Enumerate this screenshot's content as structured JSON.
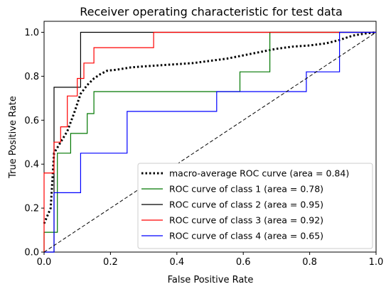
{
  "chart_data": {
    "type": "line",
    "title": "Receiver operating characteristic for test data",
    "xlabel": "False Positive Rate",
    "ylabel": "True Positive Rate",
    "xlim": [
      0.0,
      1.0
    ],
    "ylim": [
      0.0,
      1.05
    ],
    "xticks": [
      "0.0",
      "0.2",
      "0.4",
      "0.6",
      "0.8",
      "1.0"
    ],
    "yticks": [
      "0.0",
      "0.2",
      "0.4",
      "0.6",
      "0.8",
      "1.0"
    ],
    "grid": false,
    "legend_position": "lower-right",
    "series": [
      {
        "name": "macro-average ROC curve (area = 0.84)",
        "color": "#000000",
        "style": "dotted",
        "x": [
          0.0,
          0.02,
          0.03,
          0.05,
          0.07,
          0.09,
          0.11,
          0.13,
          0.15,
          0.17,
          0.19,
          0.22,
          0.26,
          0.3,
          0.35,
          0.4,
          0.45,
          0.5,
          0.55,
          0.6,
          0.65,
          0.7,
          0.75,
          0.8,
          0.85,
          0.89,
          0.93,
          0.97,
          1.0
        ],
        "y": [
          0.13,
          0.2,
          0.45,
          0.5,
          0.55,
          0.63,
          0.72,
          0.76,
          0.79,
          0.81,
          0.825,
          0.83,
          0.84,
          0.845,
          0.85,
          0.855,
          0.86,
          0.87,
          0.88,
          0.895,
          0.91,
          0.925,
          0.935,
          0.94,
          0.95,
          0.965,
          0.985,
          0.995,
          1.0
        ]
      },
      {
        "name": "ROC curve of class 1  (area = 0.78)",
        "color": "#007700",
        "style": "solid",
        "x": [
          0.0,
          0.0,
          0.0,
          0.04,
          0.04,
          0.08,
          0.08,
          0.13,
          0.13,
          0.15,
          0.15,
          0.59,
          0.59,
          0.68,
          0.68,
          1.0
        ],
        "y": [
          0.0,
          0.09,
          0.09,
          0.09,
          0.45,
          0.45,
          0.54,
          0.54,
          0.63,
          0.63,
          0.73,
          0.73,
          0.82,
          0.82,
          1.0,
          1.0
        ]
      },
      {
        "name": "ROC curve of class 2  (area = 0.95)",
        "color": "#000000",
        "style": "solid",
        "x": [
          0.0,
          0.03,
          0.03,
          0.11,
          0.11,
          1.0
        ],
        "y": [
          0.0,
          0.0,
          0.75,
          0.75,
          1.0,
          1.0
        ]
      },
      {
        "name": "ROC curve of class 3  (area = 0.92)",
        "color": "#ff0000",
        "style": "solid",
        "x": [
          0.0,
          0.0,
          0.03,
          0.03,
          0.05,
          0.05,
          0.07,
          0.07,
          0.1,
          0.1,
          0.12,
          0.12,
          0.15,
          0.15,
          0.17,
          0.17,
          0.2,
          0.2,
          0.33,
          0.33,
          1.0
        ],
        "y": [
          0.0,
          0.36,
          0.36,
          0.5,
          0.5,
          0.57,
          0.57,
          0.71,
          0.71,
          0.79,
          0.79,
          0.86,
          0.86,
          0.93,
          0.93,
          0.93,
          0.93,
          0.93,
          0.93,
          1.0,
          1.0
        ]
      },
      {
        "name": "ROC curve of class 4  (area = 0.65)",
        "color": "#0000ff",
        "style": "solid",
        "x": [
          0.0,
          0.03,
          0.03,
          0.11,
          0.11,
          0.25,
          0.25,
          0.52,
          0.52,
          0.79,
          0.79,
          0.89,
          0.89,
          1.0
        ],
        "y": [
          0.0,
          0.0,
          0.27,
          0.27,
          0.45,
          0.45,
          0.64,
          0.64,
          0.73,
          0.73,
          0.82,
          0.82,
          1.0,
          1.0
        ]
      },
      {
        "name": "",
        "color": "#000000",
        "style": "dashed",
        "x": [
          0.0,
          1.0
        ],
        "y": [
          0.0,
          1.0
        ]
      }
    ]
  }
}
